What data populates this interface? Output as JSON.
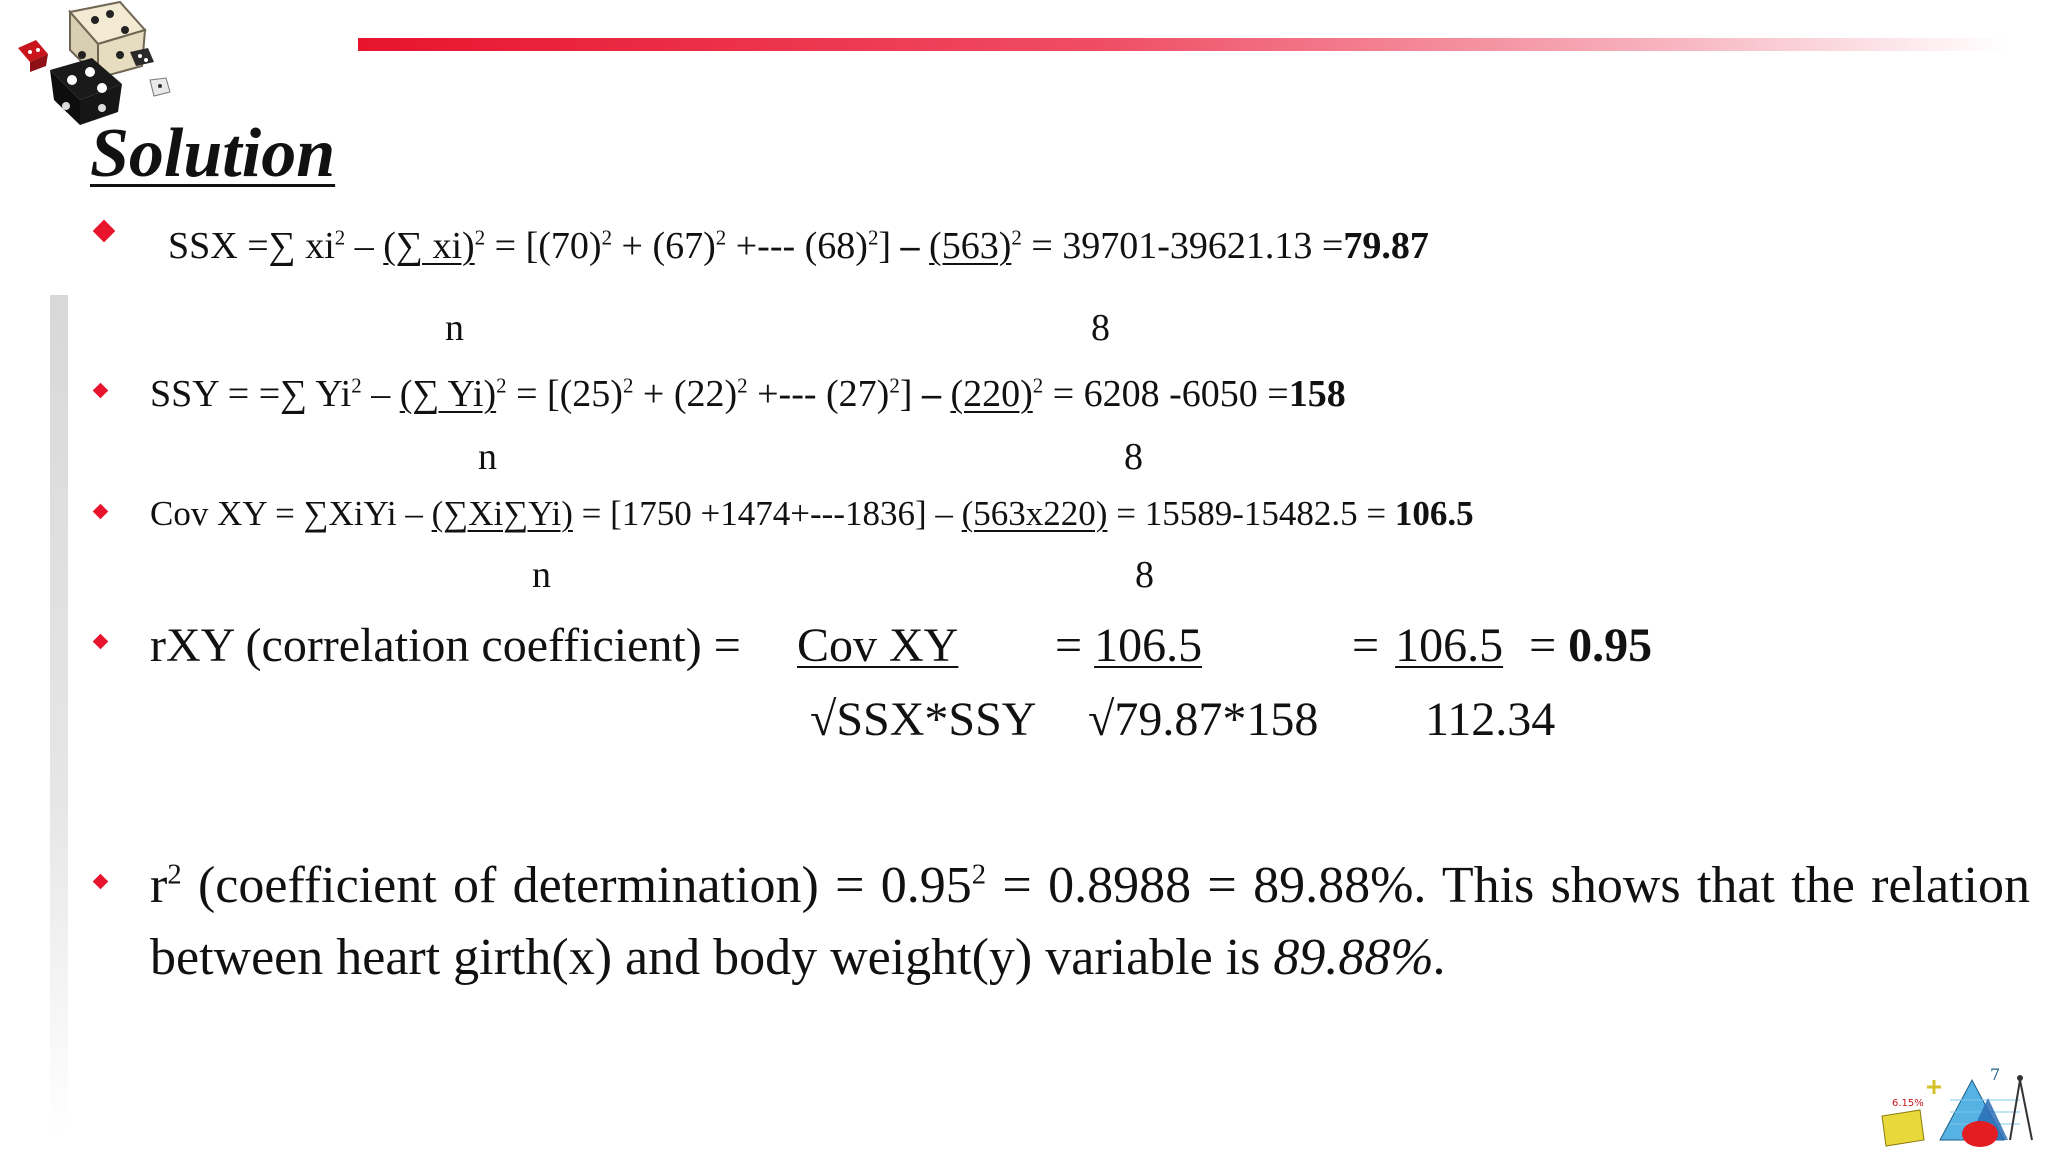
{
  "title": "Solution",
  "ssx": {
    "lhs": "SSX =∑ xi",
    "sq": "2",
    "minus": " – ",
    "num_u": "(∑ xi)",
    "expr": " = [(70)",
    "p2": " + (67)",
    "p3": " +--- (68)",
    "p4": "] ",
    "dash": "– ",
    "n_u": "(563)",
    "result": " = 39701-39621.13 =",
    "final": "79.87",
    "den_left": "n",
    "den_right": "8"
  },
  "ssy": {
    "lhs": "SSY = =∑ Yi",
    "sq": "2",
    "minus": " – ",
    "num_u": "(∑ Yi)",
    "expr": " = [(25)",
    "p2": " + (22)",
    "p3": " +--- (27)",
    "p4": "] ",
    "dash": "– ",
    "n_u": "(220)",
    "result": " = 6208 -6050 =",
    "final": "158",
    "den_left": "n",
    "den_right": "8"
  },
  "cov": {
    "lhs": "Cov XY = ∑XiYi – ",
    "num_u": "(∑Xi∑Yi)",
    "expr": " = [1750 +1474+---1836] – ",
    "n_u": "(563x220)",
    "result": " = 15589-15482.5 = ",
    "final": "106.5",
    "den_left": "n",
    "den_right": "8"
  },
  "rxy": {
    "label": "rXY (correlation coefficient) = ",
    "num1": "Cov XY",
    "eq2": "= ",
    "num2": "106.5",
    "eq3": "=",
    "num3": "106.5",
    "eq4": "= ",
    "final": "0.95",
    "den1": "√SSX*SSY",
    "den2": "√79.87*158",
    "den3": "112.34"
  },
  "r2": {
    "r": "r",
    "sq": "2",
    "text1": " (coefficient of determination) = 0.95",
    "text2": " = 0.8988 = 89.88%. This shows that the relation between heart girth(x) and body weight(y) variable is ",
    "final_it": "89.88%."
  },
  "colors": {
    "accent": "#e8142e"
  }
}
